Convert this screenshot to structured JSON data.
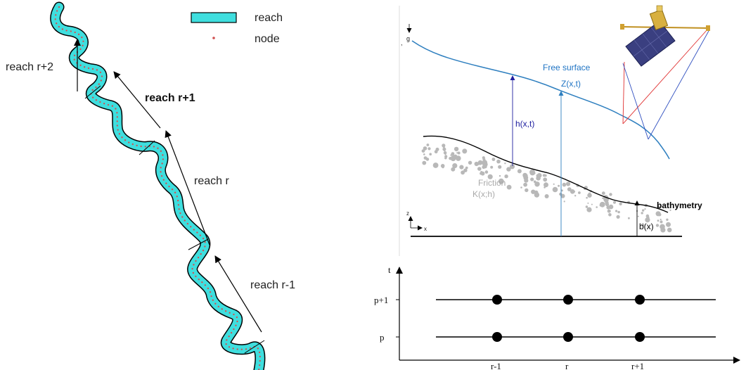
{
  "river_panel": {
    "legend": {
      "reach_label": "reach",
      "node_label": "node"
    },
    "reach_labels": {
      "r_plus_2": "reach r+2",
      "r_plus_1": "reach r+1",
      "r": "reach r",
      "r_minus_1": "reach r-1"
    },
    "colors": {
      "river_fill": "#3fdede",
      "river_outline": "#000000",
      "node": "#d05050"
    }
  },
  "profile_panel": {
    "gravity_label": "g",
    "free_surface_label": "Free surface",
    "z_label": "Z(x,t)",
    "h_label": "h(x,t)",
    "friction_label": "Friction",
    "friction_param_label": "K(x;h)",
    "bathymetry_label": "bathymetry",
    "b_label": "b(x)",
    "axis_z_label": "z",
    "axis_x_label": "x",
    "colors": {
      "water": "#2e7fbf",
      "text_blue": "#1f74c4",
      "sediment": "#b8b8b8",
      "arrow_dark_blue": "#2020a0",
      "beam_red": "#e03030",
      "beam_blue": "#3050c0"
    }
  },
  "time_panel": {
    "t_label": "t",
    "time_levels": [
      "p+1",
      "p"
    ],
    "space_labels": [
      "r-1",
      "r",
      "r+1"
    ]
  }
}
